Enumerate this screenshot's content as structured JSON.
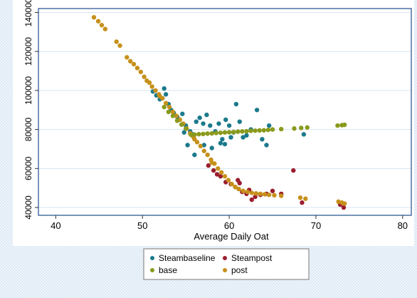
{
  "chart_data": {
    "type": "scatter",
    "title": "",
    "xlabel": "Average Daily Oat",
    "ylabel": "",
    "xlim": [
      38,
      81
    ],
    "ylim": [
      36000,
      142000
    ],
    "x_ticks": [
      40,
      50,
      60,
      70,
      80
    ],
    "y_ticks": [
      40000,
      60000,
      80000,
      100000,
      120000,
      140000
    ],
    "x_tick_labels": [
      "40",
      "50",
      "60",
      "70",
      "80"
    ],
    "y_tick_labels": [
      "40000",
      "60000",
      "80000",
      "100000",
      "120000",
      "140000"
    ],
    "grid": true,
    "legend_position": "bottom",
    "colors": {
      "Steambaseline": "#1b7a8c",
      "Steampost": "#9b1d2e",
      "base": "#8a9a1c",
      "post": "#c6901a",
      "frame": "#1f4e8c",
      "grid": "#d8e4f0"
    },
    "series": [
      {
        "name": "Steambaseline",
        "points": [
          [
            51.2,
            99500
          ],
          [
            51.6,
            97500
          ],
          [
            52.0,
            95500
          ],
          [
            52.3,
            96000
          ],
          [
            52.5,
            101000
          ],
          [
            52.7,
            98000
          ],
          [
            53.0,
            93000
          ],
          [
            53.3,
            90000
          ],
          [
            53.6,
            88500
          ],
          [
            54.0,
            86500
          ],
          [
            54.3,
            85000
          ],
          [
            54.6,
            88000
          ],
          [
            55.0,
            82000
          ],
          [
            55.5,
            79000
          ],
          [
            55.8,
            77500
          ],
          [
            56.2,
            84000
          ],
          [
            56.6,
            86000
          ],
          [
            57.0,
            83000
          ],
          [
            57.4,
            87500
          ],
          [
            57.8,
            82000
          ],
          [
            58.4,
            79000
          ],
          [
            58.8,
            83000
          ],
          [
            59.2,
            75000
          ],
          [
            59.6,
            85000
          ],
          [
            60.0,
            82000
          ],
          [
            60.5,
            78500
          ],
          [
            60.8,
            93000
          ],
          [
            61.2,
            84000
          ],
          [
            61.6,
            76000
          ],
          [
            62.0,
            77000
          ],
          [
            62.5,
            80000
          ],
          [
            63.2,
            90000
          ],
          [
            63.8,
            75000
          ],
          [
            64.3,
            72000
          ],
          [
            64.6,
            82000
          ],
          [
            68.6,
            77500
          ],
          [
            56.0,
            67000
          ],
          [
            57.1,
            72000
          ],
          [
            58.0,
            70500
          ],
          [
            59.0,
            73000
          ],
          [
            59.5,
            72500
          ],
          [
            60.2,
            76000
          ],
          [
            55.2,
            72000
          ],
          [
            54.8,
            78500
          ]
        ]
      },
      {
        "name": "Steampost",
        "points": [
          [
            57.6,
            61500
          ],
          [
            58.2,
            59000
          ],
          [
            58.6,
            57000
          ],
          [
            59.0,
            56000
          ],
          [
            59.6,
            53000
          ],
          [
            60.2,
            52000
          ],
          [
            60.7,
            50500
          ],
          [
            61.2,
            52500
          ],
          [
            61.5,
            48000
          ],
          [
            62.0,
            47000
          ],
          [
            62.6,
            44000
          ],
          [
            63.0,
            45500
          ],
          [
            63.6,
            46500
          ],
          [
            64.3,
            47000
          ],
          [
            65.0,
            48500
          ],
          [
            66.0,
            47000
          ],
          [
            67.4,
            59000
          ],
          [
            68.4,
            42500
          ],
          [
            72.8,
            41500
          ],
          [
            73.2,
            40000
          ],
          [
            61.0,
            54000
          ],
          [
            62.3,
            49000
          ]
        ]
      },
      {
        "name": "base",
        "points": [
          [
            55.6,
            77200
          ],
          [
            56.0,
            77400
          ],
          [
            56.5,
            77600
          ],
          [
            57.0,
            77700
          ],
          [
            57.5,
            77900
          ],
          [
            58.0,
            78000
          ],
          [
            58.5,
            78200
          ],
          [
            59.0,
            78300
          ],
          [
            59.5,
            78500
          ],
          [
            60.0,
            78600
          ],
          [
            60.5,
            78700
          ],
          [
            61.0,
            78900
          ],
          [
            61.5,
            79000
          ],
          [
            62.0,
            79100
          ],
          [
            62.5,
            79300
          ],
          [
            63.0,
            79400
          ],
          [
            63.5,
            79500
          ],
          [
            64.0,
            79600
          ],
          [
            64.5,
            79800
          ],
          [
            65.0,
            80000
          ],
          [
            66.0,
            80200
          ],
          [
            67.5,
            80500
          ],
          [
            68.3,
            80800
          ],
          [
            69.0,
            81000
          ],
          [
            72.5,
            82000
          ],
          [
            73.0,
            82200
          ],
          [
            73.3,
            82400
          ],
          [
            53.0,
            89000
          ],
          [
            53.5,
            87000
          ],
          [
            54.0,
            84500
          ],
          [
            54.5,
            82500
          ],
          [
            55.0,
            80500
          ],
          [
            52.5,
            91500
          ]
        ]
      },
      {
        "name": "post",
        "points": [
          [
            44.4,
            137500
          ],
          [
            44.9,
            135500
          ],
          [
            45.3,
            133500
          ],
          [
            45.7,
            131500
          ],
          [
            47.0,
            125000
          ],
          [
            47.4,
            123000
          ],
          [
            48.2,
            117000
          ],
          [
            48.6,
            115000
          ],
          [
            49.0,
            113500
          ],
          [
            49.4,
            111500
          ],
          [
            49.8,
            109500
          ],
          [
            50.2,
            107000
          ],
          [
            50.8,
            104000
          ],
          [
            51.1,
            102000
          ],
          [
            51.5,
            100000
          ],
          [
            51.9,
            98000
          ],
          [
            52.3,
            96000
          ],
          [
            52.7,
            93500
          ],
          [
            53.1,
            91500
          ],
          [
            53.5,
            89000
          ],
          [
            53.9,
            87000
          ],
          [
            54.3,
            85000
          ],
          [
            54.7,
            83000
          ],
          [
            55.1,
            80500
          ],
          [
            55.5,
            78000
          ],
          [
            55.9,
            76000
          ],
          [
            56.3,
            73500
          ],
          [
            56.7,
            71500
          ],
          [
            57.1,
            69000
          ],
          [
            57.5,
            67000
          ],
          [
            57.9,
            64500
          ],
          [
            58.3,
            62500
          ],
          [
            58.7,
            60000
          ],
          [
            59.1,
            58000
          ],
          [
            59.5,
            56000
          ],
          [
            59.9,
            54000
          ],
          [
            60.3,
            52000
          ],
          [
            60.7,
            50500
          ],
          [
            61.1,
            49500
          ],
          [
            61.6,
            48500
          ],
          [
            62.1,
            48000
          ],
          [
            62.6,
            47500
          ],
          [
            63.1,
            47200
          ],
          [
            63.6,
            47000
          ],
          [
            64.1,
            46800
          ],
          [
            64.6,
            46500
          ],
          [
            65.2,
            46300
          ],
          [
            66.0,
            46000
          ],
          [
            68.2,
            45000
          ],
          [
            68.8,
            44500
          ],
          [
            72.6,
            43000
          ],
          [
            73.0,
            42500
          ],
          [
            73.3,
            42000
          ],
          [
            52.0,
            97000
          ],
          [
            50.5,
            105000
          ],
          [
            56.0,
            75000
          ],
          [
            58.0,
            63000
          ]
        ]
      }
    ],
    "legend": {
      "items": [
        {
          "label": "Steambaseline",
          "series": "Steambaseline"
        },
        {
          "label": "Steampost",
          "series": "Steampost"
        },
        {
          "label": "base",
          "series": "base"
        },
        {
          "label": "post",
          "series": "post"
        }
      ]
    }
  }
}
